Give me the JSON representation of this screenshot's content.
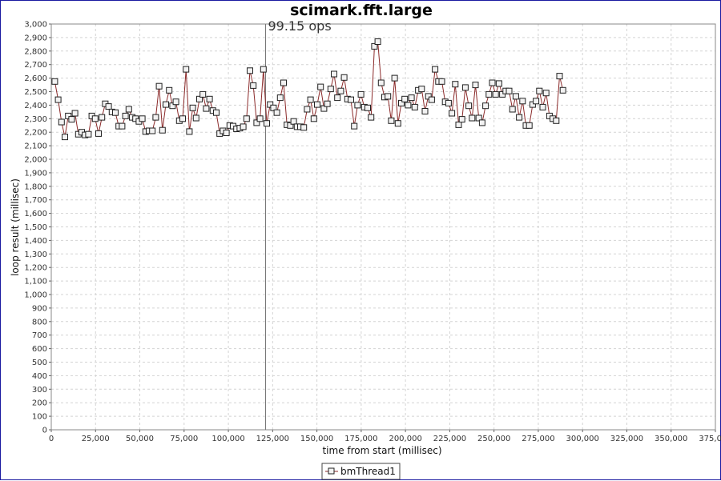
{
  "chart_data": {
    "type": "line",
    "title": "scimark.fft.large",
    "xlabel": "time from start (millisec)",
    "ylabel": "loop result (millisec)",
    "xlim": [
      0,
      375000
    ],
    "ylim": [
      0,
      3000
    ],
    "x_ticks": [
      "0",
      "25,000",
      "50,000",
      "75,000",
      "100,000",
      "125,000",
      "150,000",
      "175,000",
      "200,000",
      "225,000",
      "250,000",
      "275,000",
      "300,000",
      "325,000",
      "350,000",
      "375,000"
    ],
    "y_ticks": [
      "0",
      "100",
      "200",
      "300",
      "400",
      "500",
      "600",
      "700",
      "800",
      "900",
      "1,000",
      "1,100",
      "1,200",
      "1,300",
      "1,400",
      "1,500",
      "1,600",
      "1,700",
      "1,800",
      "1,900",
      "2,000",
      "2,100",
      "2,200",
      "2,300",
      "2,400",
      "2,500",
      "2,600",
      "2,700",
      "2,800",
      "2,900",
      "3,000"
    ],
    "grid": true,
    "legend_position": "bottom",
    "marker_line": {
      "x": 121000,
      "label": "99.15 ops"
    },
    "series": [
      {
        "name": "bmThread1",
        "color": "#8b2a2a",
        "x_start": 2000,
        "x_step": 1900,
        "values": [
          2575,
          2440,
          2275,
          2165,
          2320,
          2295,
          2340,
          2185,
          2200,
          2180,
          2185,
          2320,
          2300,
          2190,
          2310,
          2410,
          2390,
          2350,
          2345,
          2245,
          2245,
          2320,
          2370,
          2310,
          2300,
          2280,
          2300,
          2205,
          2210,
          2210,
          2310,
          2540,
          2215,
          2405,
          2510,
          2395,
          2425,
          2285,
          2300,
          2665,
          2205,
          2380,
          2305,
          2445,
          2480,
          2375,
          2445,
          2360,
          2345,
          2190,
          2210,
          2195,
          2250,
          2245,
          2225,
          2230,
          2240,
          2300,
          2655,
          2545,
          2270,
          2300,
          2665,
          2265,
          2405,
          2380,
          2345,
          2455,
          2565,
          2255,
          2250,
          2280,
          2240,
          2240,
          2235,
          2370,
          2440,
          2300,
          2405,
          2535,
          2375,
          2410,
          2520,
          2630,
          2455,
          2505,
          2605,
          2445,
          2440,
          2245,
          2400,
          2480,
          2385,
          2380,
          2310,
          2835,
          2870,
          2565,
          2460,
          2465,
          2285,
          2600,
          2265,
          2415,
          2445,
          2400,
          2455,
          2385,
          2510,
          2520,
          2355,
          2465,
          2440,
          2665,
          2575,
          2575,
          2425,
          2415,
          2340,
          2555,
          2255,
          2295,
          2530,
          2395,
          2305,
          2550,
          2305,
          2270,
          2395,
          2480,
          2565,
          2480,
          2560,
          2480,
          2505,
          2505,
          2370,
          2465,
          2310,
          2430,
          2250,
          2250,
          2405,
          2430,
          2505,
          2385,
          2490,
          2320,
          2300,
          2285,
          2615,
          2510
        ]
      }
    ]
  }
}
